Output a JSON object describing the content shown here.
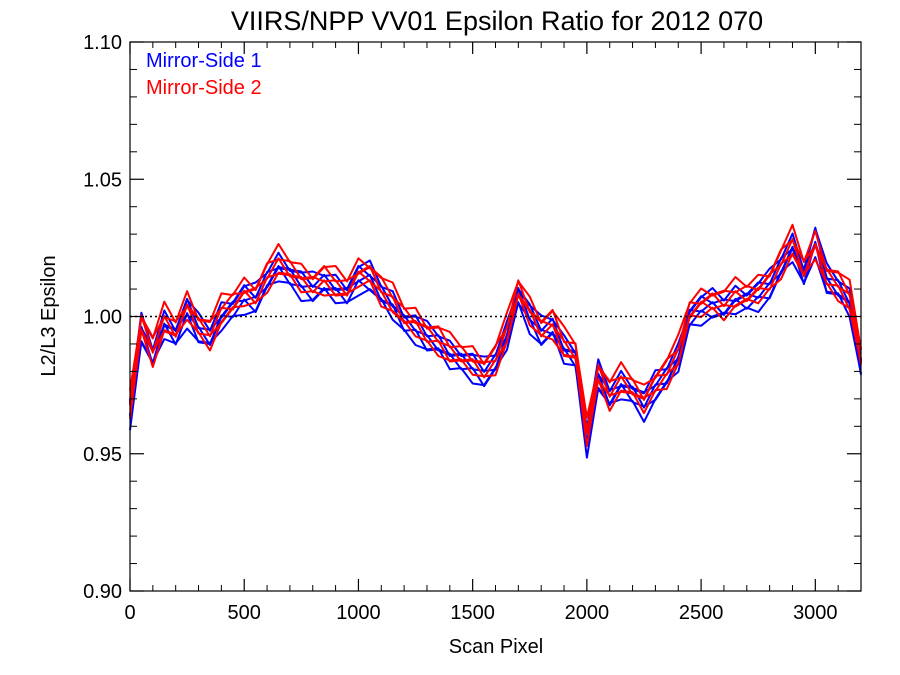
{
  "chart_data": {
    "type": "line",
    "title": "VIIRS/NPP VV01 Epsilon Ratio for 2012 070",
    "xlabel": "Scan Pixel",
    "ylabel": "L2/L3 Epsilon",
    "xlim": [
      0,
      3200
    ],
    "ylim": [
      0.9,
      1.1
    ],
    "xticks": [
      0,
      500,
      1000,
      1500,
      2000,
      2500,
      3000
    ],
    "xtick_labels": [
      "0",
      "500",
      "1000",
      "1500",
      "2000",
      "2500",
      "3000"
    ],
    "yticks": [
      0.9,
      0.95,
      1.0,
      1.05,
      1.1
    ],
    "ytick_labels": [
      "0.90",
      "0.95",
      "1.00",
      "1.05",
      "1.10"
    ],
    "reference_line": 1.0,
    "legend_position": "top-left",
    "grid": false,
    "x": [
      0,
      50,
      100,
      150,
      200,
      250,
      300,
      350,
      400,
      450,
      500,
      550,
      600,
      650,
      700,
      750,
      800,
      850,
      900,
      950,
      1000,
      1050,
      1100,
      1150,
      1200,
      1250,
      1300,
      1350,
      1400,
      1450,
      1500,
      1550,
      1600,
      1650,
      1700,
      1750,
      1800,
      1850,
      1900,
      1950,
      2000,
      2050,
      2100,
      2150,
      2200,
      2250,
      2300,
      2350,
      2400,
      2450,
      2500,
      2550,
      2600,
      2650,
      2700,
      2750,
      2800,
      2850,
      2900,
      2950,
      3000,
      3050,
      3100,
      3150,
      3200
    ],
    "series": [
      {
        "name": "Mirror-Side 1",
        "color": "#0000ff",
        "values": [
          0.965,
          0.995,
          0.985,
          0.997,
          0.993,
          1.002,
          0.995,
          0.992,
          1.0,
          1.003,
          1.007,
          1.006,
          1.013,
          1.018,
          1.015,
          1.012,
          1.01,
          1.012,
          1.01,
          1.008,
          1.014,
          1.014,
          1.008,
          1.004,
          0.998,
          0.996,
          0.992,
          0.99,
          0.986,
          0.984,
          0.982,
          0.979,
          0.983,
          0.993,
          1.008,
          1.0,
          0.994,
          0.996,
          0.988,
          0.985,
          0.955,
          0.978,
          0.97,
          0.975,
          0.972,
          0.968,
          0.974,
          0.978,
          0.985,
          1.0,
          1.003,
          1.004,
          1.003,
          1.006,
          1.006,
          1.008,
          1.011,
          1.018,
          1.025,
          1.015,
          1.028,
          1.013,
          1.01,
          1.005,
          0.982
        ]
      },
      {
        "name": "Mirror-Side 2",
        "color": "#ff0000",
        "values": [
          0.968,
          0.998,
          0.988,
          0.999,
          0.995,
          1.004,
          0.997,
          0.994,
          1.002,
          1.005,
          1.009,
          1.008,
          1.015,
          1.02,
          1.017,
          1.014,
          1.012,
          1.014,
          1.012,
          1.01,
          1.016,
          1.016,
          1.01,
          1.006,
          1.0,
          0.998,
          0.994,
          0.992,
          0.988,
          0.986,
          0.984,
          0.981,
          0.985,
          0.995,
          1.01,
          1.002,
          0.996,
          0.998,
          0.99,
          0.987,
          0.958,
          0.98,
          0.972,
          0.977,
          0.974,
          0.97,
          0.976,
          0.98,
          0.987,
          1.002,
          1.005,
          1.006,
          1.005,
          1.008,
          1.008,
          1.01,
          1.013,
          1.02,
          1.027,
          1.017,
          1.026,
          1.015,
          1.012,
          1.007,
          0.985
        ]
      }
    ]
  }
}
